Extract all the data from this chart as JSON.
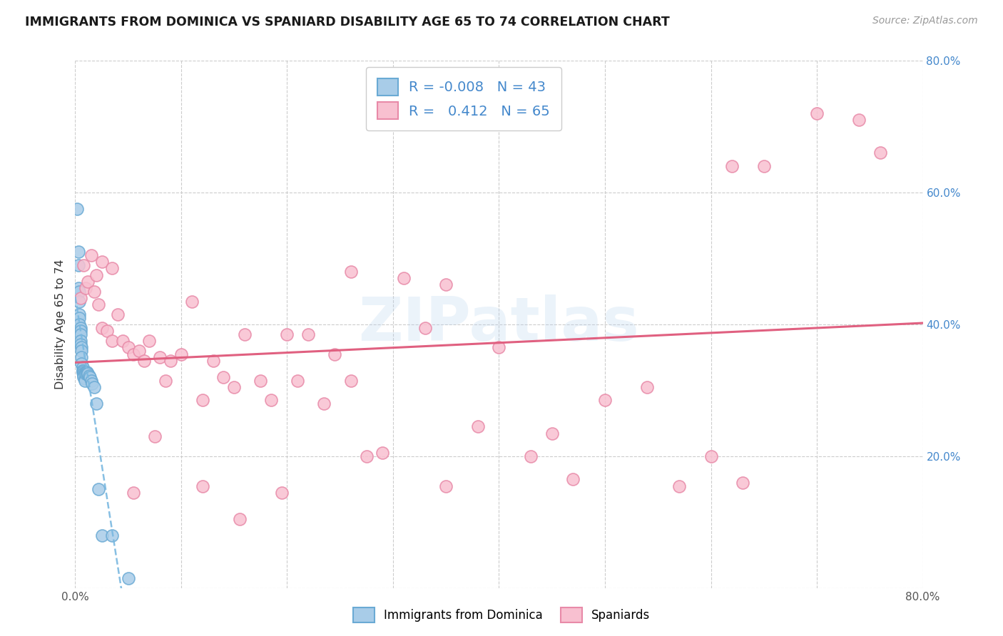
{
  "title": "IMMIGRANTS FROM DOMINICA VS SPANIARD DISABILITY AGE 65 TO 74 CORRELATION CHART",
  "source": "Source: ZipAtlas.com",
  "ylabel": "Disability Age 65 to 74",
  "xlim": [
    0.0,
    0.8
  ],
  "ylim": [
    0.0,
    0.8
  ],
  "color_blue_face": "#a8cce8",
  "color_blue_edge": "#6aaad4",
  "color_pink_face": "#f8c0d0",
  "color_pink_edge": "#e88aa8",
  "color_blue_line": "#7ab8e0",
  "color_pink_line": "#e06080",
  "legend_text_color": "#4488cc",
  "watermark": "ZIPatlas",
  "blue_x": [
    0.002,
    0.003,
    0.003,
    0.003,
    0.004,
    0.004,
    0.004,
    0.004,
    0.004,
    0.005,
    0.005,
    0.005,
    0.005,
    0.005,
    0.006,
    0.006,
    0.006,
    0.006,
    0.007,
    0.007,
    0.007,
    0.007,
    0.008,
    0.008,
    0.008,
    0.008,
    0.009,
    0.009,
    0.01,
    0.01,
    0.011,
    0.011,
    0.012,
    0.013,
    0.014,
    0.015,
    0.016,
    0.018,
    0.02,
    0.022,
    0.025,
    0.035,
    0.05
  ],
  "blue_y": [
    0.575,
    0.51,
    0.49,
    0.455,
    0.45,
    0.435,
    0.415,
    0.41,
    0.4,
    0.395,
    0.39,
    0.385,
    0.375,
    0.37,
    0.365,
    0.36,
    0.35,
    0.34,
    0.335,
    0.33,
    0.33,
    0.328,
    0.325,
    0.325,
    0.322,
    0.32,
    0.318,
    0.315,
    0.328,
    0.325,
    0.328,
    0.325,
    0.325,
    0.322,
    0.32,
    0.315,
    0.31,
    0.305,
    0.28,
    0.15,
    0.08,
    0.08,
    0.015
  ],
  "pink_x": [
    0.005,
    0.008,
    0.01,
    0.012,
    0.015,
    0.018,
    0.02,
    0.022,
    0.025,
    0.03,
    0.035,
    0.04,
    0.045,
    0.05,
    0.055,
    0.06,
    0.065,
    0.07,
    0.08,
    0.085,
    0.09,
    0.1,
    0.11,
    0.12,
    0.13,
    0.14,
    0.15,
    0.16,
    0.175,
    0.185,
    0.2,
    0.21,
    0.22,
    0.235,
    0.245,
    0.26,
    0.275,
    0.29,
    0.31,
    0.33,
    0.35,
    0.38,
    0.4,
    0.43,
    0.45,
    0.47,
    0.5,
    0.54,
    0.57,
    0.6,
    0.63,
    0.65,
    0.7,
    0.74,
    0.76,
    0.025,
    0.035,
    0.055,
    0.075,
    0.12,
    0.155,
    0.195,
    0.26,
    0.35,
    0.62
  ],
  "pink_y": [
    0.44,
    0.49,
    0.455,
    0.465,
    0.505,
    0.45,
    0.475,
    0.43,
    0.395,
    0.39,
    0.375,
    0.415,
    0.375,
    0.365,
    0.355,
    0.36,
    0.345,
    0.375,
    0.35,
    0.315,
    0.345,
    0.355,
    0.435,
    0.285,
    0.345,
    0.32,
    0.305,
    0.385,
    0.315,
    0.285,
    0.385,
    0.315,
    0.385,
    0.28,
    0.355,
    0.315,
    0.2,
    0.205,
    0.47,
    0.395,
    0.46,
    0.245,
    0.365,
    0.2,
    0.235,
    0.165,
    0.285,
    0.305,
    0.155,
    0.2,
    0.16,
    0.64,
    0.72,
    0.71,
    0.66,
    0.495,
    0.485,
    0.145,
    0.23,
    0.155,
    0.105,
    0.145,
    0.48,
    0.155,
    0.64
  ]
}
